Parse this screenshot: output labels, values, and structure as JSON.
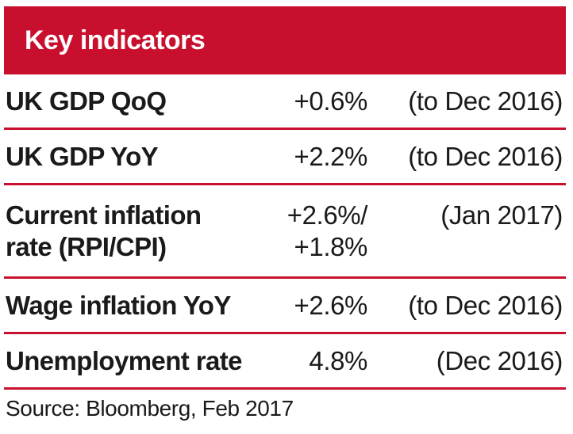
{
  "header": {
    "title": "Key indicators",
    "background": "#c8102e"
  },
  "rows": [
    {
      "label": "UK GDP QoQ",
      "value": "+0.6%",
      "period": "(to Dec 2016)"
    },
    {
      "label": "UK  GDP YoY",
      "value": "+2.2%",
      "period": "(to Dec 2016)"
    },
    {
      "label": "Current inflation\nrate (RPI/CPI)",
      "value": "+2.6%/\n+1.8%",
      "period": "(Jan 2017)"
    },
    {
      "label": "Wage inflation YoY",
      "value": "+2.6%",
      "period": "(to Dec 2016)"
    },
    {
      "label": "Unemployment rate",
      "value": "4.8%",
      "period": "(Dec 2016)"
    }
  ],
  "source": "Source: Bloomberg, Feb 2017"
}
